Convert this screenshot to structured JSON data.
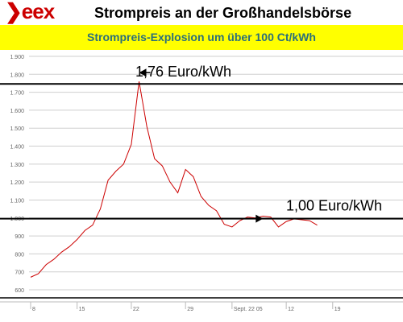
{
  "header": {
    "logo_text": "eex",
    "logo_chevron": "❯",
    "title": "Strompreis an der Großhandelsbörse"
  },
  "banner": {
    "text": "Strompreis-Explosion um über 100 Ct/kWh"
  },
  "colors": {
    "brand": "#cc0000",
    "banner_bg": "#ffff00",
    "banner_text": "#2b6f7a",
    "line": "#cc0000",
    "grid": "#cfcfcf"
  },
  "chart_data": {
    "type": "line",
    "title": "",
    "xlabel": "",
    "ylabel": "",
    "ylim": [
      600,
      1900
    ],
    "yticks": [
      600,
      700,
      800,
      900,
      1000,
      1100,
      1200,
      1300,
      1400,
      1500,
      1600,
      1700,
      1800,
      1900
    ],
    "ytick_labels": [
      "600",
      "700",
      "800",
      "900",
      "1.000",
      "1.100",
      "1.200",
      "1.300",
      "1.400",
      "1.500",
      "1.600",
      "1.700",
      "1.800",
      "1.900"
    ],
    "xlim": [
      0,
      46
    ],
    "xtick_positions": [
      0,
      6,
      13,
      20,
      26,
      33,
      39
    ],
    "xtick_labels": [
      "8",
      "15",
      "22",
      "29",
      "Sept. 22 05",
      "12",
      "19"
    ],
    "grid": true,
    "series": [
      {
        "values": [
          [
            0,
            670
          ],
          [
            1,
            690
          ],
          [
            2,
            740
          ],
          [
            3,
            770
          ],
          [
            4,
            810
          ],
          [
            5,
            840
          ],
          [
            6,
            880
          ],
          [
            7,
            930
          ],
          [
            8,
            960
          ],
          [
            9,
            1050
          ],
          [
            10,
            1210
          ],
          [
            11,
            1260
          ],
          [
            12,
            1300
          ],
          [
            13,
            1410
          ],
          [
            14,
            1760
          ],
          [
            15,
            1510
          ],
          [
            16,
            1330
          ],
          [
            17,
            1290
          ],
          [
            18,
            1200
          ],
          [
            19,
            1140
          ],
          [
            20,
            1270
          ],
          [
            21,
            1230
          ],
          [
            22,
            1120
          ],
          [
            23,
            1070
          ],
          [
            24,
            1040
          ],
          [
            25,
            965
          ],
          [
            26,
            950
          ],
          [
            27,
            985
          ],
          [
            28,
            1005
          ],
          [
            29,
            1000
          ],
          [
            30,
            1010
          ],
          [
            31,
            1005
          ],
          [
            32,
            950
          ],
          [
            33,
            980
          ],
          [
            34,
            995
          ],
          [
            35,
            990
          ],
          [
            36,
            985
          ],
          [
            37,
            960
          ]
        ]
      }
    ],
    "annotations": [
      {
        "text": "1,76 Euro/kWh",
        "value": 1760
      },
      {
        "text": "1,00 Euro/kWh",
        "value": 1005
      }
    ]
  }
}
